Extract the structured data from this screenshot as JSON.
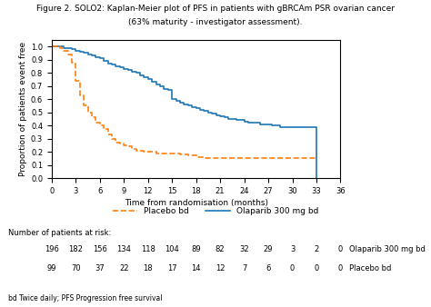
{
  "chart_data": {
    "type": "step",
    "title": "Figure 2. SOLO2: Kaplan-Meier plot of PFS in patients with gBRCAm PSR ovarian cancer",
    "subtitle": "(63% maturity - investigator assessment).",
    "x_label": "Time from randomisation (months)",
    "y_label": "Proportion of patients event free",
    "xlim": [
      0,
      36
    ],
    "ylim": [
      0.0,
      1.05
    ],
    "xticks": [
      0,
      3,
      6,
      9,
      12,
      15,
      18,
      21,
      24,
      27,
      30,
      33,
      36
    ],
    "yticks": [
      {
        "value": 0,
        "label": "0.0"
      },
      0.1,
      0.2,
      0.3,
      0.4,
      0.5,
      0.6,
      0.7,
      0.8,
      0.9,
      {
        "value": 1,
        "label": "1.0"
      }
    ],
    "grid": false,
    "legend": "lower center",
    "series": [
      {
        "name": "Olaparib 300 mg bd",
        "line_style": "solid",
        "x": [
          0,
          0.5,
          1,
          1.5,
          2,
          2.5,
          3,
          3.5,
          4,
          4.5,
          5,
          5.5,
          6,
          6.5,
          7,
          7.5,
          8,
          8.5,
          9,
          9.5,
          10,
          10.5,
          11,
          11.5,
          12,
          12.5,
          13,
          13.5,
          14,
          14.5,
          15,
          15.5,
          16,
          16.5,
          17,
          17.5,
          18,
          18.5,
          19,
          19.5,
          20,
          20.5,
          21,
          21.5,
          22,
          22.5,
          23,
          23.5,
          24,
          24.5,
          25,
          25.5,
          26,
          26.5,
          27,
          27.5,
          28,
          28.5,
          29,
          29.5,
          30,
          30.5,
          31,
          31.5,
          32,
          32.5,
          33,
          33.0
        ],
        "values": [
          1.0,
          1.0,
          1.0,
          0.99,
          0.99,
          0.98,
          0.97,
          0.96,
          0.95,
          0.94,
          0.93,
          0.92,
          0.91,
          0.89,
          0.87,
          0.86,
          0.85,
          0.84,
          0.83,
          0.82,
          0.81,
          0.8,
          0.78,
          0.77,
          0.75,
          0.73,
          0.71,
          0.7,
          0.68,
          0.67,
          0.6,
          0.59,
          0.57,
          0.56,
          0.55,
          0.54,
          0.53,
          0.52,
          0.51,
          0.5,
          0.49,
          0.48,
          0.47,
          0.46,
          0.45,
          0.45,
          0.44,
          0.44,
          0.43,
          0.42,
          0.42,
          0.42,
          0.41,
          0.41,
          0.41,
          0.4,
          0.4,
          0.39,
          0.39,
          0.39,
          0.39,
          0.39,
          0.39,
          0.39,
          0.39,
          0.39,
          0.39,
          0.0
        ]
      },
      {
        "name": "Placebo bd",
        "line_style": "dashed",
        "x": [
          0,
          0.5,
          1,
          1.5,
          2,
          2.5,
          3,
          3.5,
          4,
          4.5,
          5,
          5.5,
          6,
          6.5,
          7,
          7.5,
          8,
          8.5,
          9,
          9.5,
          10,
          10.5,
          11,
          11.5,
          12,
          12.5,
          13,
          13.5,
          14,
          14.5,
          15,
          15.5,
          16,
          16.5,
          17,
          17.5,
          18,
          18.5,
          19,
          19.5,
          20,
          20.5,
          21,
          21.5,
          22,
          22.5,
          23,
          23.5,
          24,
          24.5,
          25,
          25.5,
          26,
          26.5,
          27,
          27.5,
          28,
          28.5,
          29,
          29.5,
          30,
          30.5,
          31,
          31.5,
          32,
          32.5,
          33
        ],
        "values": [
          1.0,
          1.0,
          0.99,
          0.97,
          0.94,
          0.88,
          0.74,
          0.63,
          0.55,
          0.5,
          0.46,
          0.42,
          0.4,
          0.37,
          0.33,
          0.3,
          0.27,
          0.26,
          0.25,
          0.24,
          0.22,
          0.21,
          0.21,
          0.2,
          0.2,
          0.2,
          0.19,
          0.19,
          0.19,
          0.19,
          0.19,
          0.19,
          0.18,
          0.18,
          0.17,
          0.17,
          0.16,
          0.16,
          0.15,
          0.15,
          0.15,
          0.15,
          0.15,
          0.15,
          0.15,
          0.15,
          0.15,
          0.15,
          0.15,
          0.15,
          0.15,
          0.15,
          0.15,
          0.15,
          0.15,
          0.15,
          0.15,
          0.15,
          0.15,
          0.15,
          0.15,
          0.15,
          0.15,
          0.15,
          0.15,
          0.15,
          0.15
        ]
      }
    ],
    "risk_table": {
      "header": "Number of patients at risk:",
      "times": [
        0,
        3,
        6,
        9,
        12,
        15,
        18,
        21,
        24,
        27,
        30,
        33,
        36
      ],
      "rows": [
        {
          "name": "Olaparib 300 mg bd",
          "values": [
            196,
            182,
            156,
            134,
            118,
            104,
            89,
            82,
            32,
            29,
            3,
            2,
            0
          ]
        },
        {
          "name": "Placebo bd",
          "values": [
            99,
            70,
            37,
            22,
            18,
            17,
            14,
            12,
            7,
            6,
            0,
            0,
            0
          ]
        }
      ]
    },
    "footnote": "bd Twice daily; PFS Progression free survival"
  }
}
